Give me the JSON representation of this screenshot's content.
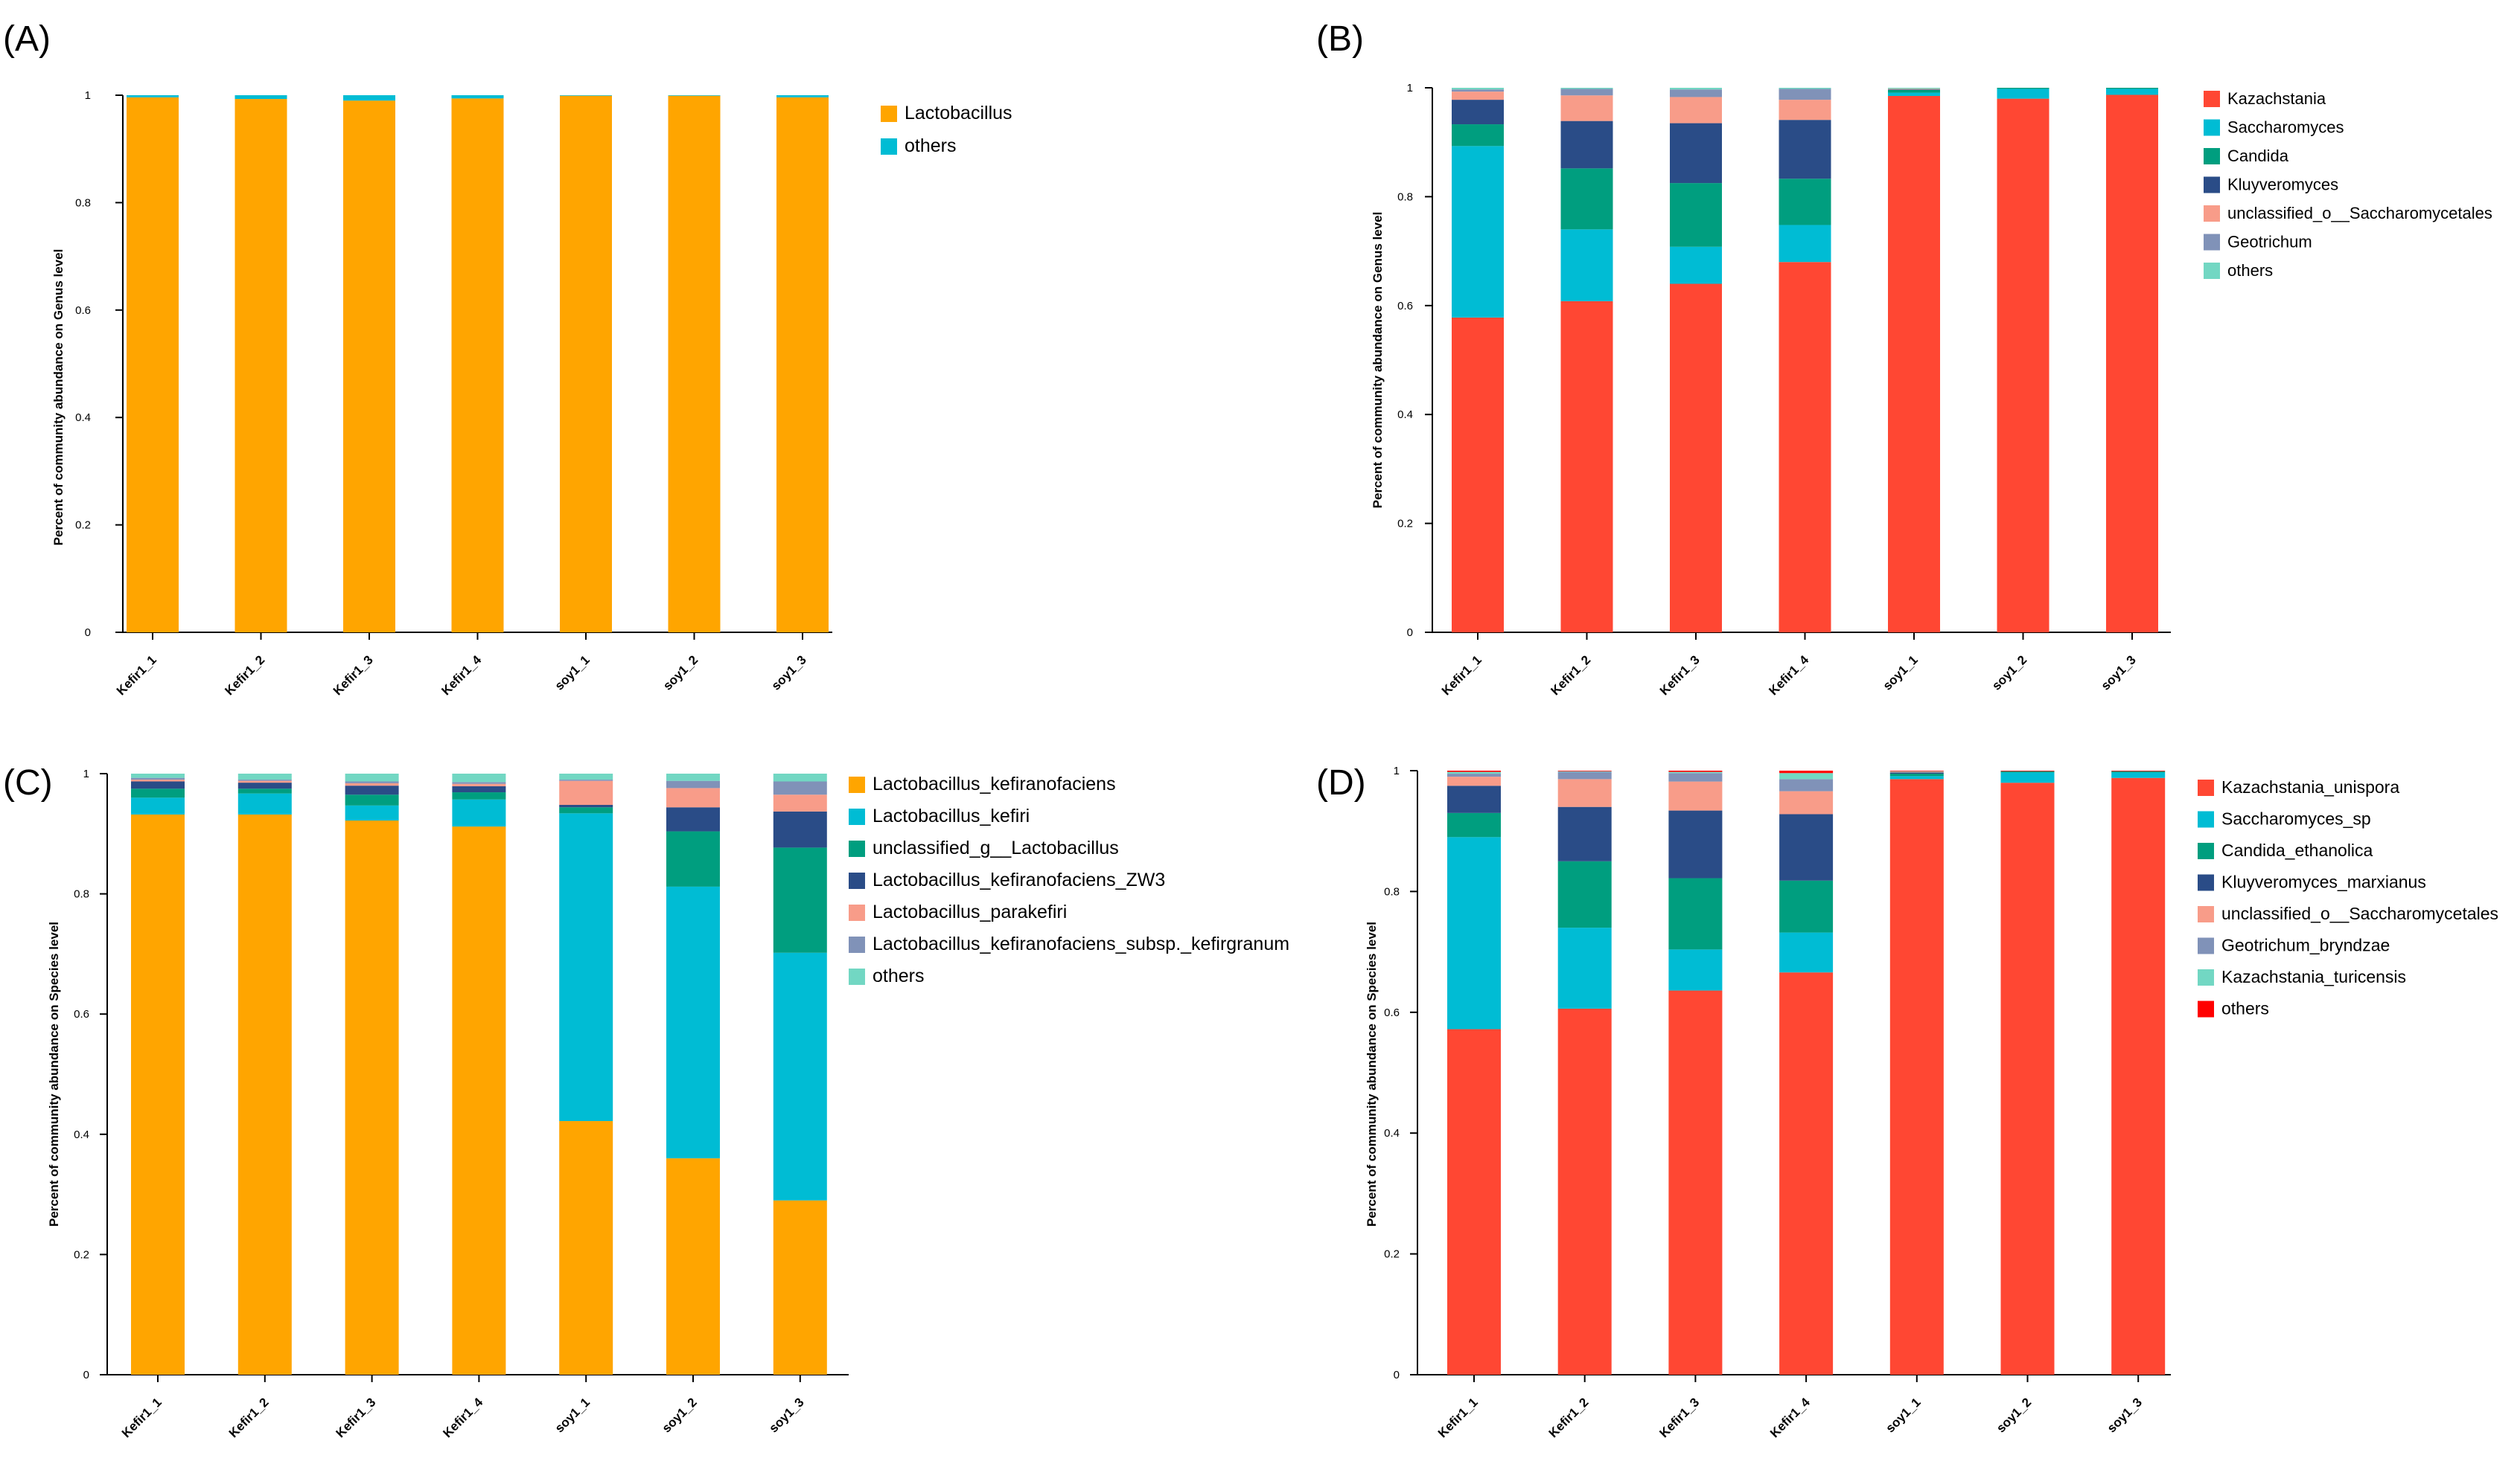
{
  "figure": {
    "background": "#ffffff",
    "axis_color": "#000000"
  },
  "chart_data": [
    {
      "panel_label": "(A)",
      "type": "bar",
      "stacked": true,
      "title": "",
      "xlabel": "",
      "ylabel": "Percent of community abundance on Genus level",
      "ylim": [
        0,
        1
      ],
      "yticks": [
        0,
        0.2,
        0.4,
        0.6,
        0.8,
        1
      ],
      "ytick_labels": [
        "0",
        "0.2",
        "0.4",
        "0.6",
        "0.8",
        "1"
      ],
      "categories": [
        "Kefir1_1",
        "Kefir1_2",
        "Kefir1_3",
        "Kefir1_4",
        "soy1_1",
        "soy1_2",
        "soy1_3"
      ],
      "legend_position": "top-right",
      "series": [
        {
          "name": "Lactobacillus",
          "color": "#FFA500",
          "values": [
            0.996,
            0.993,
            0.99,
            0.994,
            0.999,
            0.999,
            0.996
          ]
        },
        {
          "name": "others",
          "color": "#00BCD4",
          "values": [
            0.004,
            0.007,
            0.01,
            0.006,
            0.001,
            0.001,
            0.004
          ]
        }
      ]
    },
    {
      "panel_label": "(B)",
      "type": "bar",
      "stacked": true,
      "title": "",
      "xlabel": "",
      "ylabel": "Percent of community abundance on Genus level",
      "ylim": [
        0,
        1
      ],
      "yticks": [
        0,
        0.2,
        0.4,
        0.6,
        0.8,
        1
      ],
      "ytick_labels": [
        "0",
        "0.2",
        "0.4",
        "0.6",
        "0.8",
        "1"
      ],
      "categories": [
        "Kefir1_1",
        "Kefir1_2",
        "Kefir1_3",
        "Kefir1_4",
        "soy1_1",
        "soy1_2",
        "soy1_3"
      ],
      "legend_position": "top-right",
      "series": [
        {
          "name": "Kazachstania",
          "color": "#FF4733",
          "values": [
            0.578,
            0.608,
            0.64,
            0.68,
            0.985,
            0.98,
            0.987
          ]
        },
        {
          "name": "Saccharomyces",
          "color": "#00BCD4",
          "values": [
            0.315,
            0.132,
            0.068,
            0.068,
            0.006,
            0.018,
            0.011
          ]
        },
        {
          "name": "Candida",
          "color": "#009E7F",
          "values": [
            0.04,
            0.112,
            0.117,
            0.085,
            0.005,
            0.002,
            0.002
          ]
        },
        {
          "name": "Kluyveromyces",
          "color": "#2A4C87",
          "values": [
            0.045,
            0.087,
            0.11,
            0.108,
            0.001,
            0,
            0
          ]
        },
        {
          "name": "unclassified_o__Saccharomycetales",
          "color": "#F89C89",
          "values": [
            0.015,
            0.047,
            0.048,
            0.037,
            0.001,
            0,
            0
          ]
        },
        {
          "name": "Geotrichum",
          "color": "#8092B8",
          "values": [
            0.004,
            0.012,
            0.014,
            0.02,
            0,
            0,
            0
          ]
        },
        {
          "name": "others",
          "color": "#72D7C3",
          "values": [
            0.003,
            0.002,
            0.003,
            0.002,
            0.002,
            0,
            0
          ]
        }
      ]
    },
    {
      "panel_label": "(C)",
      "type": "bar",
      "stacked": true,
      "title": "",
      "xlabel": "",
      "ylabel": "Percent of community abundance on Species level",
      "ylim": [
        0,
        1
      ],
      "yticks": [
        0,
        0.2,
        0.4,
        0.6,
        0.8,
        1
      ],
      "ytick_labels": [
        "0",
        "0.2",
        "0.4",
        "0.6",
        "0.8",
        "1"
      ],
      "categories": [
        "Kefir1_1",
        "Kefir1_2",
        "Kefir1_3",
        "Kefir1_4",
        "soy1_1",
        "soy1_2",
        "soy1_3"
      ],
      "legend_position": "top-right",
      "series": [
        {
          "name": "Lactobacillus_kefiranofaciens",
          "color": "#FFA500",
          "values": [
            0.932,
            0.932,
            0.922,
            0.912,
            0.422,
            0.36,
            0.29
          ]
        },
        {
          "name": "Lactobacillus_kefiri",
          "color": "#00BCD4",
          "values": [
            0.028,
            0.035,
            0.025,
            0.045,
            0.512,
            0.452,
            0.412
          ]
        },
        {
          "name": "unclassified_g__Lactobacillus",
          "color": "#009E7F",
          "values": [
            0.015,
            0.008,
            0.018,
            0.012,
            0.01,
            0.092,
            0.175
          ]
        },
        {
          "name": "Lactobacillus_kefiranofaciens_ZW3",
          "color": "#2A4C87",
          "values": [
            0.012,
            0.01,
            0.015,
            0.01,
            0.004,
            0.04,
            0.06
          ]
        },
        {
          "name": "Lactobacillus_parakefiri",
          "color": "#F89C89",
          "values": [
            0.003,
            0.003,
            0.004,
            0.004,
            0.04,
            0.032,
            0.028
          ]
        },
        {
          "name": "Lactobacillus_kefiranofaciens_subsp._kefirgranum",
          "color": "#8092B8",
          "values": [
            0.003,
            0.002,
            0.003,
            0.003,
            0.002,
            0.012,
            0.022
          ]
        },
        {
          "name": "others",
          "color": "#72D7C3",
          "values": [
            0.007,
            0.01,
            0.013,
            0.014,
            0.01,
            0.012,
            0.013
          ]
        }
      ]
    },
    {
      "panel_label": "(D)",
      "type": "bar",
      "stacked": true,
      "title": "",
      "xlabel": "",
      "ylabel": "Percent of community abundance on Species level",
      "ylim": [
        0,
        1
      ],
      "yticks": [
        0,
        0.2,
        0.4,
        0.6,
        0.8,
        1
      ],
      "ytick_labels": [
        "0",
        "0.2",
        "0.4",
        "0.6",
        "0.8",
        "1"
      ],
      "categories": [
        "Kefir1_1",
        "Kefir1_2",
        "Kefir1_3",
        "Kefir1_4",
        "soy1_1",
        "soy1_2",
        "soy1_3"
      ],
      "legend_position": "top-right",
      "series": [
        {
          "name": "Kazachstania_unispora",
          "color": "#FF4733",
          "values": [
            0.572,
            0.606,
            0.636,
            0.666,
            0.986,
            0.98,
            0.988
          ]
        },
        {
          "name": "Saccharomyces_sp",
          "color": "#00BCD4",
          "values": [
            0.318,
            0.134,
            0.068,
            0.066,
            0.005,
            0.017,
            0.009
          ]
        },
        {
          "name": "Candida_ethanolica",
          "color": "#009E7F",
          "values": [
            0.04,
            0.11,
            0.118,
            0.086,
            0.004,
            0.002,
            0.002
          ]
        },
        {
          "name": "Kluyveromyces_marxianus",
          "color": "#2A4C87",
          "values": [
            0.045,
            0.09,
            0.112,
            0.11,
            0.002,
            0,
            0
          ]
        },
        {
          "name": "unclassified_o__Saccharomycetales",
          "color": "#F89C89",
          "values": [
            0.015,
            0.046,
            0.048,
            0.038,
            0.001,
            0,
            0
          ]
        },
        {
          "name": "Geotrichum_bryndzae",
          "color": "#8092B8",
          "values": [
            0.005,
            0.012,
            0.014,
            0.02,
            0,
            0,
            0
          ]
        },
        {
          "name": "Kazachstania_turicensis",
          "color": "#72D7C3",
          "values": [
            0.003,
            0.001,
            0.002,
            0.01,
            0.001,
            0,
            0
          ]
        },
        {
          "name": "others",
          "color": "#FF0000",
          "values": [
            0.002,
            0.001,
            0.002,
            0.004,
            0.001,
            0.001,
            0.001
          ]
        }
      ]
    }
  ]
}
